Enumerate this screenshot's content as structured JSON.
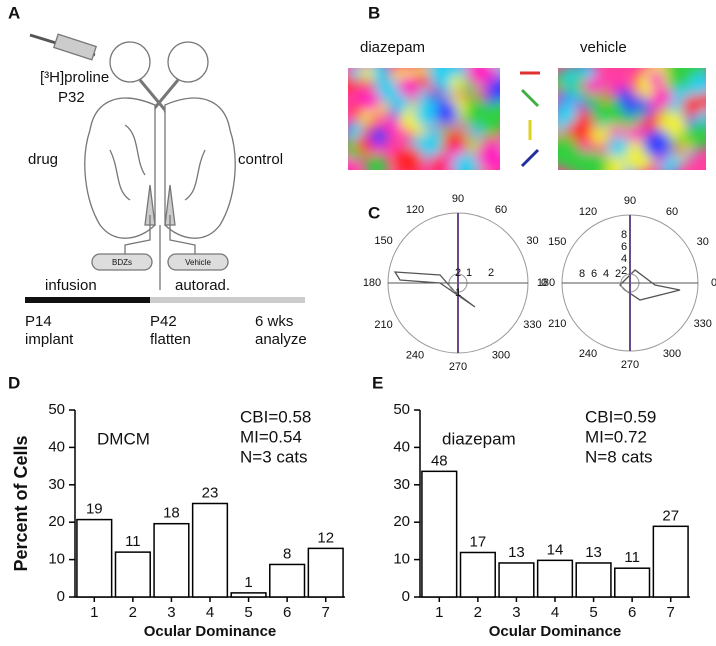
{
  "panel_labels": [
    "A",
    "B",
    "C",
    "D",
    "E"
  ],
  "panel_a": {
    "tracer": "[³H]proline",
    "age": "P32",
    "left": "drug",
    "right": "control",
    "pump_left": "BDZs",
    "pump_right": "Vehicle",
    "bar_left": "infusion",
    "bar_right": "autorad.",
    "timeline": [
      {
        "day": "P14",
        "event": "implant"
      },
      {
        "day": "P42",
        "event": "flatten"
      },
      {
        "day": "6 wks",
        "event": "analyze"
      }
    ]
  },
  "panel_b": {
    "left": "diazepam",
    "right": "vehicle"
  },
  "panel_c": [
    {
      "angles": [
        0,
        30,
        60,
        90,
        120,
        150,
        180,
        210,
        240,
        270,
        300,
        330
      ],
      "radial_ticks": [
        1,
        2
      ]
    },
    {
      "angles": [
        0,
        30,
        60,
        90,
        120,
        150,
        180,
        210,
        240,
        270,
        300,
        330
      ],
      "radial_ticks": [
        2,
        4,
        6,
        8
      ]
    }
  ],
  "chart_data": [
    {
      "type": "bar",
      "annotations": [
        "DMCM",
        "CBI=0.58",
        "MI=0.54",
        "N=3 cats"
      ],
      "xlabel": "Ocular Dominance",
      "ylabel": "Percent of Cells",
      "categories": [
        "1",
        "2",
        "3",
        "4",
        "5",
        "6",
        "7"
      ],
      "values": [
        20.7,
        12,
        19.6,
        25,
        1.1,
        8.7,
        13
      ],
      "counts": [
        19,
        11,
        18,
        23,
        1,
        8,
        12
      ],
      "color": "#ffffff",
      "ylim": [
        0,
        50
      ],
      "yticks": [
        0,
        10,
        20,
        30,
        40,
        50
      ]
    },
    {
      "type": "bar",
      "annotations": [
        "diazepam",
        "CBI=0.59",
        "MI=0.72",
        "N=8 cats"
      ],
      "xlabel": "Ocular Dominance",
      "categories": [
        "1",
        "2",
        "3",
        "4",
        "5",
        "6",
        "7"
      ],
      "values": [
        33.6,
        11.9,
        9.1,
        9.8,
        9.1,
        7.7,
        18.9
      ],
      "counts": [
        48,
        17,
        13,
        14,
        13,
        11,
        27
      ],
      "color": "#ffffff",
      "ylim": [
        0,
        50
      ],
      "yticks": [
        0,
        10,
        20,
        30,
        40,
        50
      ]
    }
  ]
}
